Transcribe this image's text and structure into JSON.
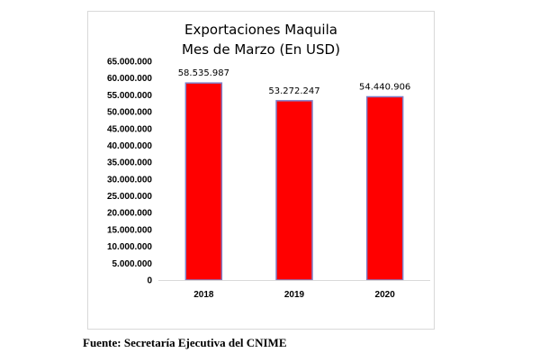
{
  "chart_data": {
    "type": "bar",
    "title": "Exportaciones  Maquila",
    "subtitle": "Mes de Marzo (En USD)",
    "categories": [
      "2018",
      "2019",
      "2020"
    ],
    "values": [
      58535987,
      53272247,
      54440906
    ],
    "value_labels": [
      "58.535.987",
      "53.272.247",
      "54.440.906"
    ],
    "ylim": [
      0,
      65000000
    ],
    "yticks": [
      0,
      5000000,
      10000000,
      15000000,
      20000000,
      25000000,
      30000000,
      35000000,
      40000000,
      45000000,
      50000000,
      55000000,
      60000000,
      65000000
    ],
    "ytick_labels": [
      "0",
      "5.000.000",
      "10.000.000",
      "15.000.000",
      "20.000.000",
      "25.000.000",
      "30.000.000",
      "35.000.000",
      "40.000.000",
      "45.000.000",
      "50.000.000",
      "55.000.000",
      "60.000.000",
      "65.000.000"
    ],
    "bar_color": "#ff0000",
    "bar_edge_color": "#7f7fc8",
    "grid": false,
    "legend": false
  },
  "source": "Fuente: Secretaría Ejecutiva del CNIME"
}
